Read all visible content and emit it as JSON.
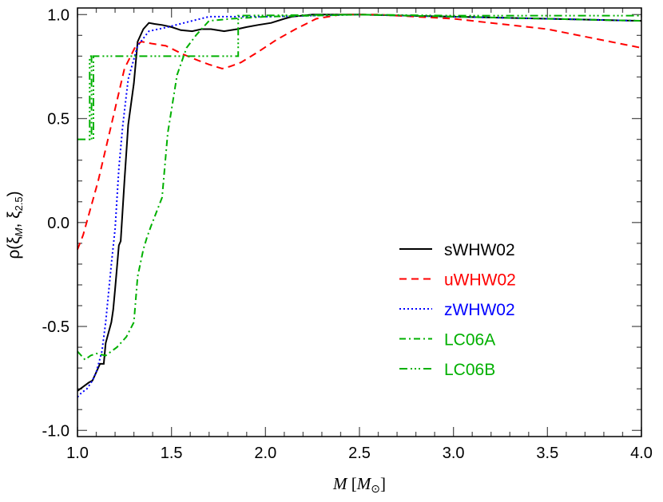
{
  "chart_data": {
    "type": "line",
    "title": "",
    "xlabel": "M [M☉]",
    "ylabel": "ρ(ξM, ξ2.5)",
    "xlabel_parts": {
      "var": "M",
      "open": " [",
      "unit": "M",
      "sub": "⊙",
      "close": "]"
    },
    "ylabel_parts": {
      "rho": "ρ(ξ",
      "sub1": "M",
      "mid": ", ξ",
      "sub2": "2.5",
      "close": ")"
    },
    "xlim": [
      1.0,
      4.0
    ],
    "ylim": [
      -1.05,
      1.03
    ],
    "xticks": [
      "1.0",
      "1.5",
      "2.0",
      "2.5",
      "3.0",
      "3.5",
      "4.0"
    ],
    "yticks": [
      "-1.0",
      "-0.5",
      "0.0",
      "0.5",
      "1.0"
    ],
    "grid": false,
    "legend_position": "center-right",
    "series": [
      {
        "name": "sWHW02",
        "color": "#000000",
        "style": "solid",
        "x": [
          1.0,
          1.03,
          1.06,
          1.08,
          1.1,
          1.12,
          1.14,
          1.15,
          1.18,
          1.19,
          1.2,
          1.22,
          1.23,
          1.25,
          1.27,
          1.3,
          1.32,
          1.35,
          1.38,
          1.41,
          1.45,
          1.5,
          1.55,
          1.61,
          1.66,
          1.71,
          1.78,
          1.85,
          1.9,
          1.96,
          2.03,
          2.1,
          2.14,
          2.25,
          2.5,
          3.0,
          3.5,
          4.0
        ],
        "y": [
          -0.81,
          -0.79,
          -0.77,
          -0.76,
          -0.72,
          -0.68,
          -0.68,
          -0.58,
          -0.48,
          -0.42,
          -0.32,
          -0.11,
          -0.09,
          0.2,
          0.47,
          0.67,
          0.87,
          0.93,
          0.96,
          0.955,
          0.95,
          0.94,
          0.925,
          0.92,
          0.93,
          0.93,
          0.92,
          0.93,
          0.94,
          0.95,
          0.96,
          0.98,
          0.99,
          1.0,
          1.0,
          0.99,
          0.98,
          0.97
        ]
      },
      {
        "name": "uWHW02",
        "color": "#ff0000",
        "style": "dashed",
        "x": [
          1.0,
          1.03,
          1.07,
          1.11,
          1.18,
          1.25,
          1.31,
          1.34,
          1.4,
          1.47,
          1.56,
          1.64,
          1.7,
          1.77,
          1.81,
          1.87,
          1.96,
          2.06,
          2.16,
          2.27,
          2.4,
          2.6,
          3.0,
          3.5,
          4.0
        ],
        "y": [
          -0.13,
          -0.06,
          0.07,
          0.2,
          0.47,
          0.74,
          0.85,
          0.87,
          0.86,
          0.85,
          0.81,
          0.78,
          0.76,
          0.74,
          0.75,
          0.77,
          0.82,
          0.88,
          0.93,
          0.98,
          1.0,
          1.0,
          0.98,
          0.93,
          0.84
        ]
      },
      {
        "name": "zWHW02",
        "color": "#0000ff",
        "style": "dotted",
        "x": [
          1.0,
          1.02,
          1.05,
          1.08,
          1.1,
          1.13,
          1.15,
          1.18,
          1.2,
          1.22,
          1.24,
          1.27,
          1.32,
          1.38,
          1.48,
          1.61,
          1.7,
          1.8,
          2.0,
          2.5,
          3.0,
          3.5,
          4.0
        ],
        "y": [
          -0.84,
          -0.82,
          -0.8,
          -0.76,
          -0.72,
          -0.62,
          -0.48,
          -0.2,
          -0.03,
          0.26,
          0.46,
          0.69,
          0.85,
          0.92,
          0.94,
          0.97,
          0.99,
          0.99,
          0.99,
          1.0,
          0.99,
          0.98,
          0.97
        ]
      },
      {
        "name": "LC06A",
        "color": "#00b000",
        "style": "dashdot",
        "x": [
          1.0,
          1.04,
          1.07,
          1.1,
          1.15,
          1.21,
          1.26,
          1.3,
          1.32,
          1.35,
          1.37,
          1.39,
          1.45,
          1.48,
          1.53,
          1.58,
          1.63,
          1.7,
          1.82,
          2.0,
          2.5,
          3.0,
          3.5,
          4.0
        ],
        "y": [
          -0.62,
          -0.66,
          -0.64,
          -0.63,
          -0.64,
          -0.6,
          -0.55,
          -0.48,
          -0.26,
          -0.13,
          -0.07,
          -0.02,
          0.12,
          0.43,
          0.71,
          0.84,
          0.9,
          0.97,
          0.98,
          0.99,
          1.0,
          0.99,
          0.98,
          0.97
        ]
      },
      {
        "name": "LC06B",
        "color": "#00b000",
        "style": "dashdotdotdot",
        "x": [
          1.0,
          1.065,
          1.065,
          1.075,
          1.075,
          1.085,
          1.085,
          1.855,
          1.855,
          2.5,
          3.0,
          4.0
        ],
        "y": [
          0.4,
          0.4,
          0.8,
          0.8,
          0.4,
          0.4,
          0.8,
          0.8,
          0.995,
          1.0,
          0.995,
          0.995
        ]
      }
    ]
  }
}
